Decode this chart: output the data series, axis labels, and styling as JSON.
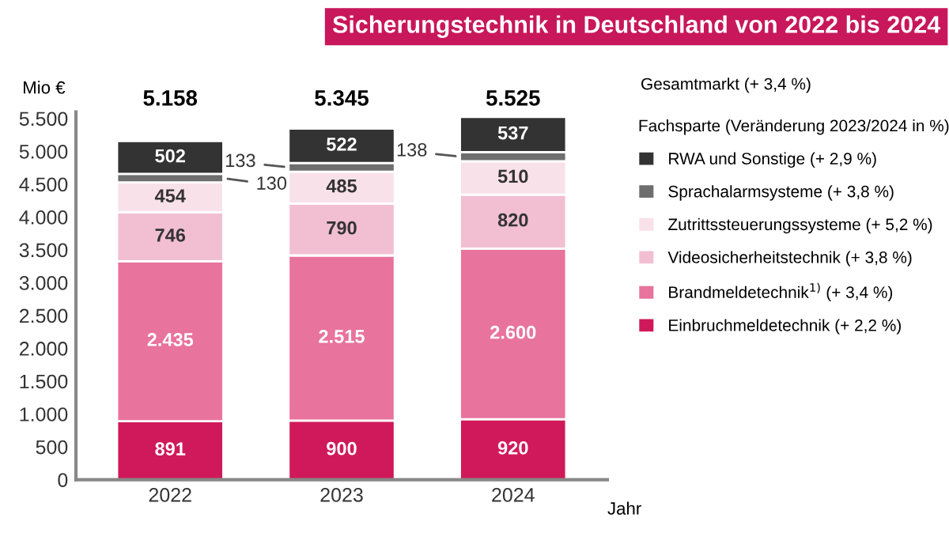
{
  "chart_data": {
    "type": "bar",
    "stacked": true,
    "title": "Sicherungstechnik in Deutschland von 2022 bis 2024",
    "ylabel": "Mio €",
    "xlabel": "Jahr",
    "legend_title": "Fachsparte (Veränderung 2023/2024 in %)",
    "annotations": [
      "Gesamtmarkt (+ 3,4 %)"
    ],
    "categories": [
      "2022",
      "2023",
      "2024"
    ],
    "series": [
      {
        "name": "Einbruchmeldetechnik (+ 2,2 %)",
        "color": "#d0195a",
        "values": [
          891,
          900,
          920
        ],
        "value_labels": [
          "891",
          "900",
          "920"
        ]
      },
      {
        "name": "Brandmeldetechnik$^{1)}$ (+ 3,4 %)",
        "color": "#e8739c",
        "values": [
          2435,
          2515,
          2600
        ],
        "value_labels": [
          "2.435",
          "2.515",
          "2.600"
        ]
      },
      {
        "name": "Videosicherheitstechnik (+ 3,8 %)",
        "color": "#f2bfd2",
        "values": [
          746,
          790,
          820
        ],
        "value_labels": [
          "746",
          "790",
          "820"
        ]
      },
      {
        "name": "Zutrittssteuerungssysteme (+ 5,2 %)",
        "color": "#f9e1ea",
        "values": [
          454,
          485,
          510
        ],
        "value_labels": [
          "454",
          "485",
          "510"
        ]
      },
      {
        "name": "Sprachalarmsysteme (+ 3,8 %)",
        "color": "#6e6e6e",
        "values": [
          130,
          133,
          138
        ],
        "value_labels": [
          "130",
          "133",
          "138"
        ]
      },
      {
        "name": "RWA und Sonstige (+ 2,9 %)",
        "color": "#333333",
        "values": [
          502,
          522,
          537
        ],
        "value_labels": [
          "502",
          "522",
          "537"
        ]
      }
    ],
    "totals": [
      "5.158",
      "5.345",
      "5.525"
    ],
    "ylim": [
      0,
      5600
    ],
    "yticks": [
      0,
      {
        "value": 500,
        "label": "500"
      },
      {
        "value": 1000,
        "label": "1.000"
      },
      {
        "value": 1500,
        "label": "1.500"
      },
      {
        "value": 2000,
        "label": "2.000"
      },
      {
        "value": 2500,
        "label": "2.500"
      },
      {
        "value": 3000,
        "label": "3.000"
      },
      {
        "value": 3500,
        "label": "3.500"
      },
      {
        "value": 4000,
        "label": "4.000"
      },
      {
        "value": 4500,
        "label": "4.500"
      },
      {
        "value": 5000,
        "label": "5.000"
      },
      {
        "value": 5500,
        "label": "5.500"
      }
    ],
    "grid": false,
    "legend": "right"
  }
}
